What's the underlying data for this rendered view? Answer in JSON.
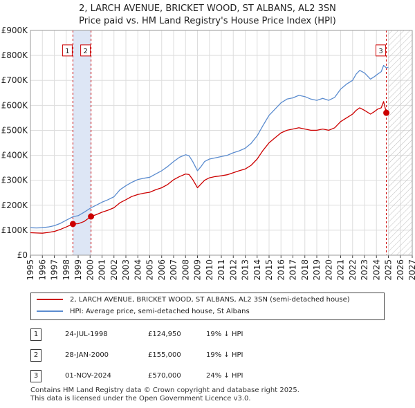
{
  "chart_data": {
    "type": "line",
    "title": "2, LARCH AVENUE, BRICKET WOOD, ST ALBANS, AL2 3SN",
    "subtitle": "Price paid vs. HM Land Registry's House Price Index (HPI)",
    "xlabel": "",
    "ylabel": "",
    "xlim": [
      1995,
      2027
    ],
    "ylim": [
      0,
      900000
    ],
    "x_ticks": [
      "1995",
      "1996",
      "1997",
      "1998",
      "1999",
      "2000",
      "2001",
      "2002",
      "2003",
      "2004",
      "2005",
      "2006",
      "2007",
      "2008",
      "2009",
      "2010",
      "2011",
      "2012",
      "2013",
      "2014",
      "2015",
      "2016",
      "2017",
      "2018",
      "2019",
      "2020",
      "2021",
      "2022",
      "2023",
      "2024",
      "2025",
      "2026",
      "2027"
    ],
    "y_ticks": [
      {
        "value": 0,
        "label": "£0"
      },
      {
        "value": 100000,
        "label": "£100K"
      },
      {
        "value": 200000,
        "label": "£200K"
      },
      {
        "value": 300000,
        "label": "£300K"
      },
      {
        "value": 400000,
        "label": "£400K"
      },
      {
        "value": 500000,
        "label": "£500K"
      },
      {
        "value": 600000,
        "label": "£600K"
      },
      {
        "value": 700000,
        "label": "£700K"
      },
      {
        "value": 800000,
        "label": "£800K"
      },
      {
        "value": 900000,
        "label": "£900K"
      }
    ],
    "grid": true,
    "series": [
      {
        "name": "2, LARCH AVENUE, BRICKET WOOD, ST ALBANS, AL2 3SN (semi-detached house)",
        "color": "#cc0000",
        "x": [
          1995.0,
          1995.5,
          1996.0,
          1996.5,
          1997.0,
          1997.5,
          1998.0,
          1998.56,
          1999.0,
          1999.5,
          2000.08,
          2000.5,
          2001.0,
          2001.5,
          2002.0,
          2002.5,
          2003.0,
          2003.5,
          2004.0,
          2004.5,
          2005.0,
          2005.5,
          2006.0,
          2006.5,
          2007.0,
          2007.5,
          2008.0,
          2008.3,
          2008.6,
          2009.0,
          2009.3,
          2009.6,
          2010.0,
          2010.5,
          2011.0,
          2011.5,
          2012.0,
          2012.5,
          2013.0,
          2013.5,
          2014.0,
          2014.5,
          2015.0,
          2015.5,
          2016.0,
          2016.5,
          2017.0,
          2017.5,
          2018.0,
          2018.5,
          2019.0,
          2019.5,
          2020.0,
          2020.5,
          2021.0,
          2021.5,
          2022.0,
          2022.3,
          2022.6,
          2023.0,
          2023.5,
          2023.83,
          2024.1,
          2024.4,
          2024.6,
          2024.83
        ],
        "values": [
          90000,
          89000,
          88000,
          91000,
          95000,
          103000,
          113000,
          124950,
          126000,
          135000,
          155000,
          162000,
          172000,
          180000,
          190000,
          210000,
          222000,
          235000,
          243000,
          248000,
          252000,
          262000,
          270000,
          283000,
          302000,
          315000,
          325000,
          323000,
          303000,
          270000,
          285000,
          300000,
          310000,
          315000,
          318000,
          322000,
          330000,
          338000,
          345000,
          360000,
          385000,
          420000,
          450000,
          470000,
          490000,
          500000,
          505000,
          510000,
          505000,
          500000,
          500000,
          505000,
          500000,
          510000,
          535000,
          550000,
          565000,
          580000,
          590000,
          580000,
          565000,
          575000,
          585000,
          590000,
          615000,
          570000
        ]
      },
      {
        "name": "HPI: Average price, semi-detached house, St Albans",
        "color": "#5b8ccf",
        "x": [
          1995.0,
          1995.5,
          1996.0,
          1996.5,
          1997.0,
          1997.5,
          1998.0,
          1998.56,
          1999.0,
          1999.5,
          2000.08,
          2000.5,
          2001.0,
          2001.5,
          2002.0,
          2002.5,
          2003.0,
          2003.5,
          2004.0,
          2004.5,
          2005.0,
          2005.5,
          2006.0,
          2006.5,
          2007.0,
          2007.5,
          2008.0,
          2008.3,
          2008.6,
          2009.0,
          2009.3,
          2009.6,
          2010.0,
          2010.5,
          2011.0,
          2011.5,
          2012.0,
          2012.5,
          2013.0,
          2013.5,
          2014.0,
          2014.5,
          2015.0,
          2015.5,
          2016.0,
          2016.5,
          2017.0,
          2017.5,
          2018.0,
          2018.5,
          2019.0,
          2019.5,
          2020.0,
          2020.5,
          2021.0,
          2021.5,
          2022.0,
          2022.3,
          2022.6,
          2023.0,
          2023.5,
          2023.83,
          2024.1,
          2024.4,
          2024.6,
          2024.83,
          2025.0
        ],
        "values": [
          110000,
          109000,
          110000,
          113000,
          118000,
          127000,
          140000,
          154000,
          158000,
          172000,
          190000,
          200000,
          212000,
          222000,
          234000,
          262000,
          278000,
          292000,
          303000,
          308000,
          312000,
          325000,
          338000,
          355000,
          375000,
          392000,
          402000,
          398000,
          375000,
          338000,
          355000,
          375000,
          385000,
          390000,
          395000,
          400000,
          410000,
          418000,
          428000,
          448000,
          478000,
          520000,
          560000,
          585000,
          610000,
          625000,
          630000,
          640000,
          635000,
          625000,
          620000,
          628000,
          620000,
          632000,
          665000,
          685000,
          700000,
          725000,
          740000,
          730000,
          705000,
          715000,
          725000,
          735000,
          760000,
          750000,
          752000
        ]
      }
    ],
    "sales": [
      {
        "label": "1",
        "x": 1998.56,
        "value": 124950
      },
      {
        "label": "2",
        "x": 2000.08,
        "value": 155000
      },
      {
        "label": "3",
        "x": 2024.83,
        "value": 570000
      }
    ],
    "highlight_band": {
      "from": 1998.56,
      "to": 2000.08
    },
    "future_hatch_from": 2025.0
  },
  "legend": {
    "property_label": "2, LARCH AVENUE, BRICKET WOOD, ST ALBANS, AL2 3SN (semi-detached house)",
    "hpi_label": "HPI: Average price, semi-detached house, St Albans"
  },
  "transactions": [
    {
      "num": "1",
      "date": "24-JUL-1998",
      "price": "£124,950",
      "hpi": "19% ↓ HPI"
    },
    {
      "num": "2",
      "date": "28-JAN-2000",
      "price": "£155,000",
      "hpi": "19% ↓ HPI"
    },
    {
      "num": "3",
      "date": "01-NOV-2024",
      "price": "£570,000",
      "hpi": "24% ↓ HPI"
    }
  ],
  "footer": {
    "line1": "Contains HM Land Registry data © Crown copyright and database right 2025.",
    "line2": "This data is licensed under the Open Government Licence v3.0."
  },
  "colors": {
    "property": "#cc0000",
    "hpi": "#5b8ccf",
    "highlight": "#dde6f5",
    "grid": "#dddddd"
  }
}
